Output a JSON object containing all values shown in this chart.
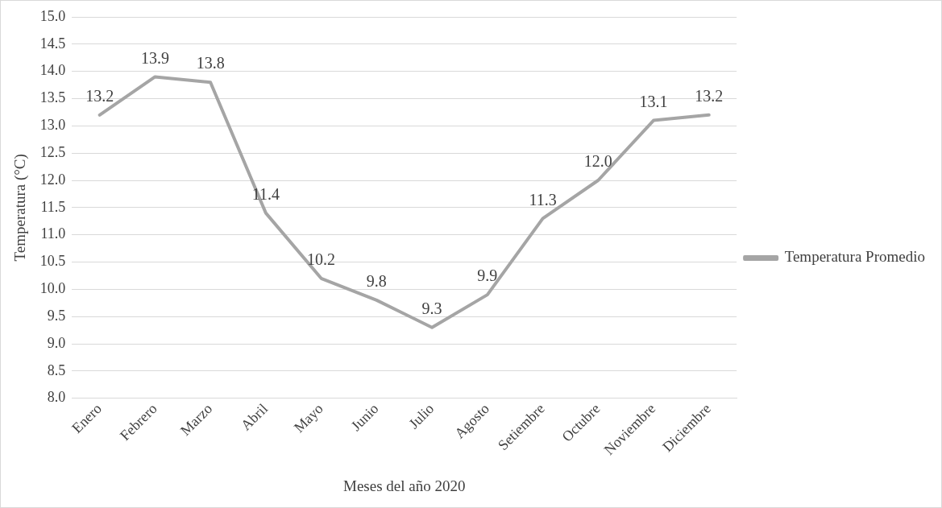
{
  "chart_data": {
    "type": "line",
    "xlabel": "Meses del año 2020",
    "ylabel": "Temperatura (°C)",
    "categories": [
      "Enero",
      "Febrero",
      "Marzo",
      "Abril",
      "Mayo",
      "Junio",
      "Julio",
      "Agosto",
      "Setiembre",
      "Octubre",
      "Noviembre",
      "Diciembre"
    ],
    "series": [
      {
        "name": "Temperatura Promedio",
        "color": "#a5a5a5",
        "values": [
          13.2,
          13.9,
          13.8,
          11.4,
          10.2,
          9.8,
          9.3,
          9.9,
          11.3,
          12.0,
          13.1,
          13.2
        ],
        "value_labels": [
          "13.2",
          "13.9",
          "13.8",
          "11.4",
          "10.2",
          "9.8",
          "9.3",
          "9.9",
          "11.3",
          "12.0",
          "13.1",
          "13.2"
        ]
      }
    ],
    "ylim": [
      8,
      15
    ],
    "yticks": [
      {
        "value": 8,
        "label": "8.0"
      },
      {
        "value": 8.5,
        "label": "8.5"
      },
      {
        "value": 9,
        "label": "9.0"
      },
      {
        "value": 9.5,
        "label": "9.5"
      },
      {
        "value": 10,
        "label": "10.0"
      },
      {
        "value": 10.5,
        "label": "10.5"
      },
      {
        "value": 11,
        "label": "11.0"
      },
      {
        "value": 11.5,
        "label": "11.5"
      },
      {
        "value": 12,
        "label": "12.0"
      },
      {
        "value": 12.5,
        "label": "12.5"
      },
      {
        "value": 13,
        "label": "13.0"
      },
      {
        "value": 13.5,
        "label": "13.5"
      },
      {
        "value": 14,
        "label": "14.0"
      },
      {
        "value": 14.5,
        "label": "14.5"
      },
      {
        "value": 15,
        "label": "15.0"
      }
    ],
    "grid": "y",
    "legend": "right",
    "marker": "none",
    "line_style": "solid"
  }
}
